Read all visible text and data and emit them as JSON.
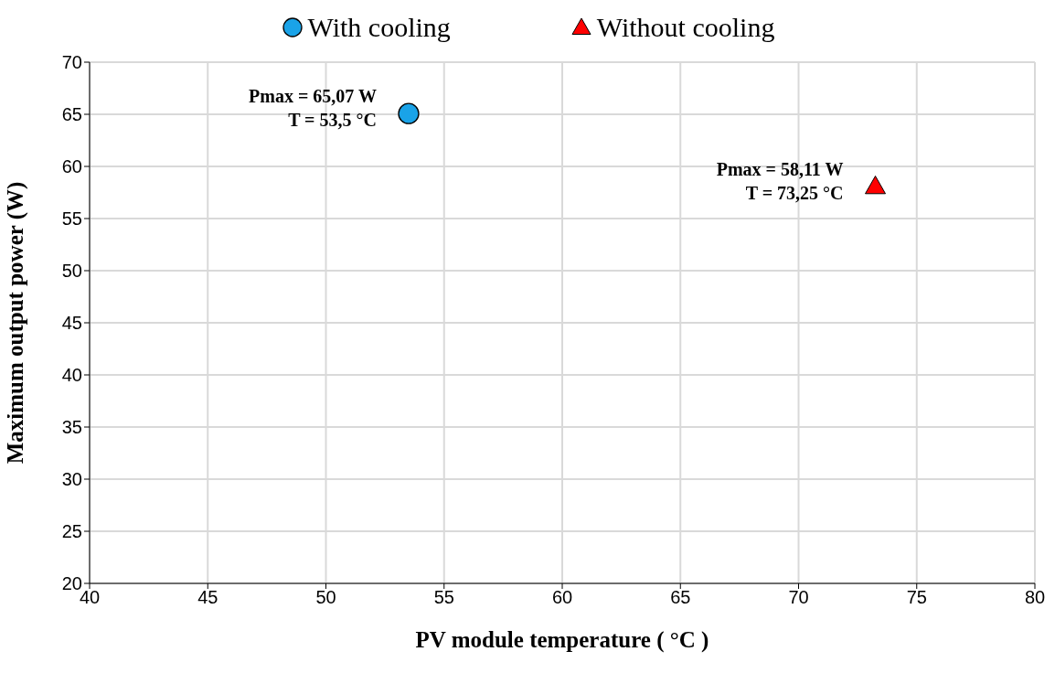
{
  "chart_data": {
    "type": "scatter",
    "xlabel": "PV module temperature ( °C )",
    "ylabel": "Maximum output power (W)",
    "series": [
      {
        "name": "With cooling",
        "color": "#1aa3e8",
        "marker": "circle",
        "x": [
          53.5
        ],
        "values": [
          65.07
        ]
      },
      {
        "name": "Without cooling",
        "color": "#ff0000",
        "marker": "triangle",
        "x": [
          73.25
        ],
        "values": [
          58.11
        ]
      }
    ],
    "xlim": [
      40,
      80
    ],
    "xticks": [
      40,
      45,
      50,
      55,
      60,
      65,
      70,
      75,
      80
    ],
    "ylim": [
      20,
      70
    ],
    "yticks": [
      20,
      25,
      30,
      35,
      40,
      45,
      50,
      55,
      60,
      65,
      70
    ],
    "grid": true,
    "legend": "top",
    "annotations": [
      {
        "text": "Pmax = 65,07 W\nT = 53,5 °C",
        "x": 53.5,
        "y": 65.07
      },
      {
        "text": "Pmax = 58,11 W\nT = 73,25 °C",
        "x": 73.25,
        "y": 58.11
      }
    ]
  }
}
